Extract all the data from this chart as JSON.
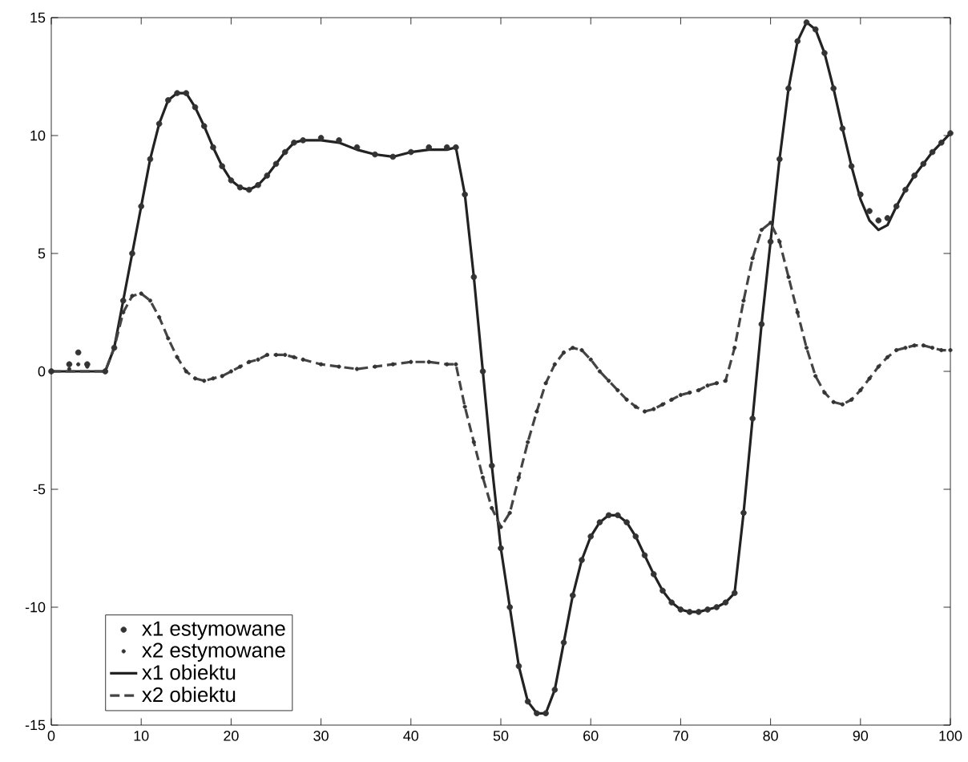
{
  "chart_data": {
    "type": "line",
    "x": [
      0,
      2,
      3,
      4,
      6,
      7,
      8,
      9,
      10,
      11,
      12,
      13,
      14,
      15,
      16,
      17,
      18,
      19,
      20,
      21,
      22,
      23,
      24,
      25,
      26,
      27,
      28,
      30,
      32,
      34,
      36,
      38,
      40,
      42,
      44,
      45,
      46,
      47,
      48,
      49,
      50,
      51,
      52,
      53,
      54,
      55,
      56,
      57,
      58,
      59,
      60,
      61,
      62,
      63,
      64,
      65,
      66,
      67,
      68,
      69,
      70,
      71,
      72,
      73,
      74,
      75,
      76,
      77,
      78,
      79,
      80,
      81,
      82,
      83,
      84,
      85,
      86,
      87,
      88,
      89,
      90,
      91,
      92,
      93,
      94,
      95,
      96,
      97,
      98,
      99,
      100
    ],
    "series": [
      {
        "name": "x1 estymowane",
        "type": "scatter",
        "marker": "circle",
        "color": "#333333",
        "values": [
          0,
          0.3,
          0.8,
          0.3,
          0,
          1,
          3,
          5,
          7,
          9,
          10.5,
          11.5,
          11.8,
          11.8,
          11.2,
          10.4,
          9.5,
          8.7,
          8.1,
          7.8,
          7.7,
          7.9,
          8.3,
          8.8,
          9.3,
          9.7,
          9.8,
          9.9,
          9.8,
          9.5,
          9.2,
          9.1,
          9.3,
          9.5,
          9.5,
          9.5,
          7.5,
          4,
          0,
          -4,
          -7.5,
          -10,
          -12.5,
          -14,
          -14.5,
          -14.5,
          -13.5,
          -11.5,
          -9.5,
          -8,
          -7,
          -6.4,
          -6.1,
          -6.1,
          -6.4,
          -7,
          -7.8,
          -8.6,
          -9.3,
          -9.8,
          -10.1,
          -10.2,
          -10.2,
          -10.1,
          -10,
          -9.8,
          -9.4,
          -6,
          -2,
          2,
          5.5,
          9,
          12,
          14,
          14.8,
          14.5,
          13.5,
          12,
          10.3,
          8.7,
          7.5,
          6.8,
          6.4,
          6.5,
          7,
          7.7,
          8.3,
          8.8,
          9.3,
          9.7,
          10.1
        ]
      },
      {
        "name": "x2 estymowane",
        "type": "scatter",
        "marker": "circle",
        "color": "#333333",
        "values": [
          null,
          0.1,
          0.3,
          0.2,
          null,
          null,
          2.5,
          3.2,
          3.3,
          3,
          2.3,
          1.4,
          0.6,
          0,
          -0.3,
          -0.4,
          -0.3,
          -0.2,
          0,
          0.2,
          0.4,
          0.5,
          0.7,
          0.7,
          0.7,
          0.6,
          0.5,
          0.3,
          0.2,
          0.1,
          0.2,
          0.3,
          0.4,
          0.4,
          0.3,
          0.3,
          -1.5,
          -3,
          -4.5,
          -5.8,
          -6.6,
          -6,
          -4.5,
          -3,
          -1.7,
          -0.5,
          0.3,
          0.8,
          1,
          0.9,
          0.5,
          0,
          -0.4,
          -0.8,
          -1.2,
          -1.5,
          -1.7,
          -1.6,
          -1.4,
          -1.2,
          -1,
          -0.9,
          -0.8,
          -0.6,
          -0.5,
          -0.4,
          1,
          3,
          4.8,
          6,
          6.3,
          5.5,
          4,
          2.5,
          1,
          -0.2,
          -0.9,
          -1.3,
          -1.4,
          -1.2,
          -0.8,
          -0.3,
          0.2,
          0.6,
          0.9,
          1,
          1.1,
          1.1,
          1,
          0.9,
          0.9
        ]
      },
      {
        "name": "x1 obiektu",
        "line_style": "solid",
        "color": "#222222",
        "values": [
          0,
          0,
          0,
          0,
          0,
          1,
          3,
          5,
          7,
          9,
          10.5,
          11.5,
          11.8,
          11.8,
          11.2,
          10.4,
          9.5,
          8.7,
          8.1,
          7.8,
          7.7,
          7.9,
          8.3,
          8.8,
          9.3,
          9.7,
          9.8,
          9.8,
          9.7,
          9.4,
          9.2,
          9.1,
          9.3,
          9.4,
          9.4,
          9.5,
          7.5,
          4,
          0,
          -4,
          -7.5,
          -10,
          -12.5,
          -14,
          -14.5,
          -14.5,
          -13.5,
          -11.5,
          -9.5,
          -8,
          -7,
          -6.4,
          -6.1,
          -6.1,
          -6.4,
          -7,
          -7.8,
          -8.6,
          -9.3,
          -9.8,
          -10.1,
          -10.2,
          -10.2,
          -10.1,
          -10,
          -9.8,
          -9.4,
          -6,
          -2,
          2,
          5.5,
          9,
          12,
          14,
          14.8,
          14.5,
          13.5,
          12,
          10.3,
          8.7,
          7.3,
          6.4,
          6,
          6.2,
          7,
          7.7,
          8.3,
          8.8,
          9.3,
          9.7,
          10.1
        ]
      },
      {
        "name": "x2 obiektu",
        "line_style": "dashed",
        "color": "#444444",
        "values": [
          0,
          0,
          0,
          0,
          0,
          1,
          2.5,
          3.2,
          3.3,
          3,
          2.3,
          1.4,
          0.6,
          0,
          -0.3,
          -0.4,
          -0.3,
          -0.2,
          0,
          0.2,
          0.4,
          0.5,
          0.7,
          0.7,
          0.7,
          0.6,
          0.5,
          0.3,
          0.2,
          0.1,
          0.2,
          0.3,
          0.4,
          0.4,
          0.3,
          0.3,
          -1.5,
          -3,
          -4.5,
          -5.8,
          -6.6,
          -6,
          -4.5,
          -3,
          -1.7,
          -0.5,
          0.3,
          0.8,
          1,
          0.9,
          0.5,
          0,
          -0.4,
          -0.8,
          -1.2,
          -1.5,
          -1.7,
          -1.6,
          -1.4,
          -1.2,
          -1,
          -0.9,
          -0.8,
          -0.6,
          -0.5,
          -0.4,
          1,
          3,
          4.8,
          6,
          6.3,
          5.5,
          4,
          2.5,
          1,
          -0.2,
          -0.9,
          -1.3,
          -1.4,
          -1.2,
          -0.8,
          -0.3,
          0.2,
          0.6,
          0.9,
          1,
          1.1,
          1.1,
          1,
          0.9,
          0.9
        ]
      }
    ],
    "xlim": [
      0,
      100
    ],
    "ylim": [
      -15,
      15
    ],
    "xticks": [
      0,
      10,
      20,
      30,
      40,
      50,
      60,
      70,
      80,
      90,
      100
    ],
    "yticks": [
      -15,
      -10,
      -5,
      0,
      5,
      10,
      15
    ],
    "grid": false,
    "legend": "bottom left"
  }
}
